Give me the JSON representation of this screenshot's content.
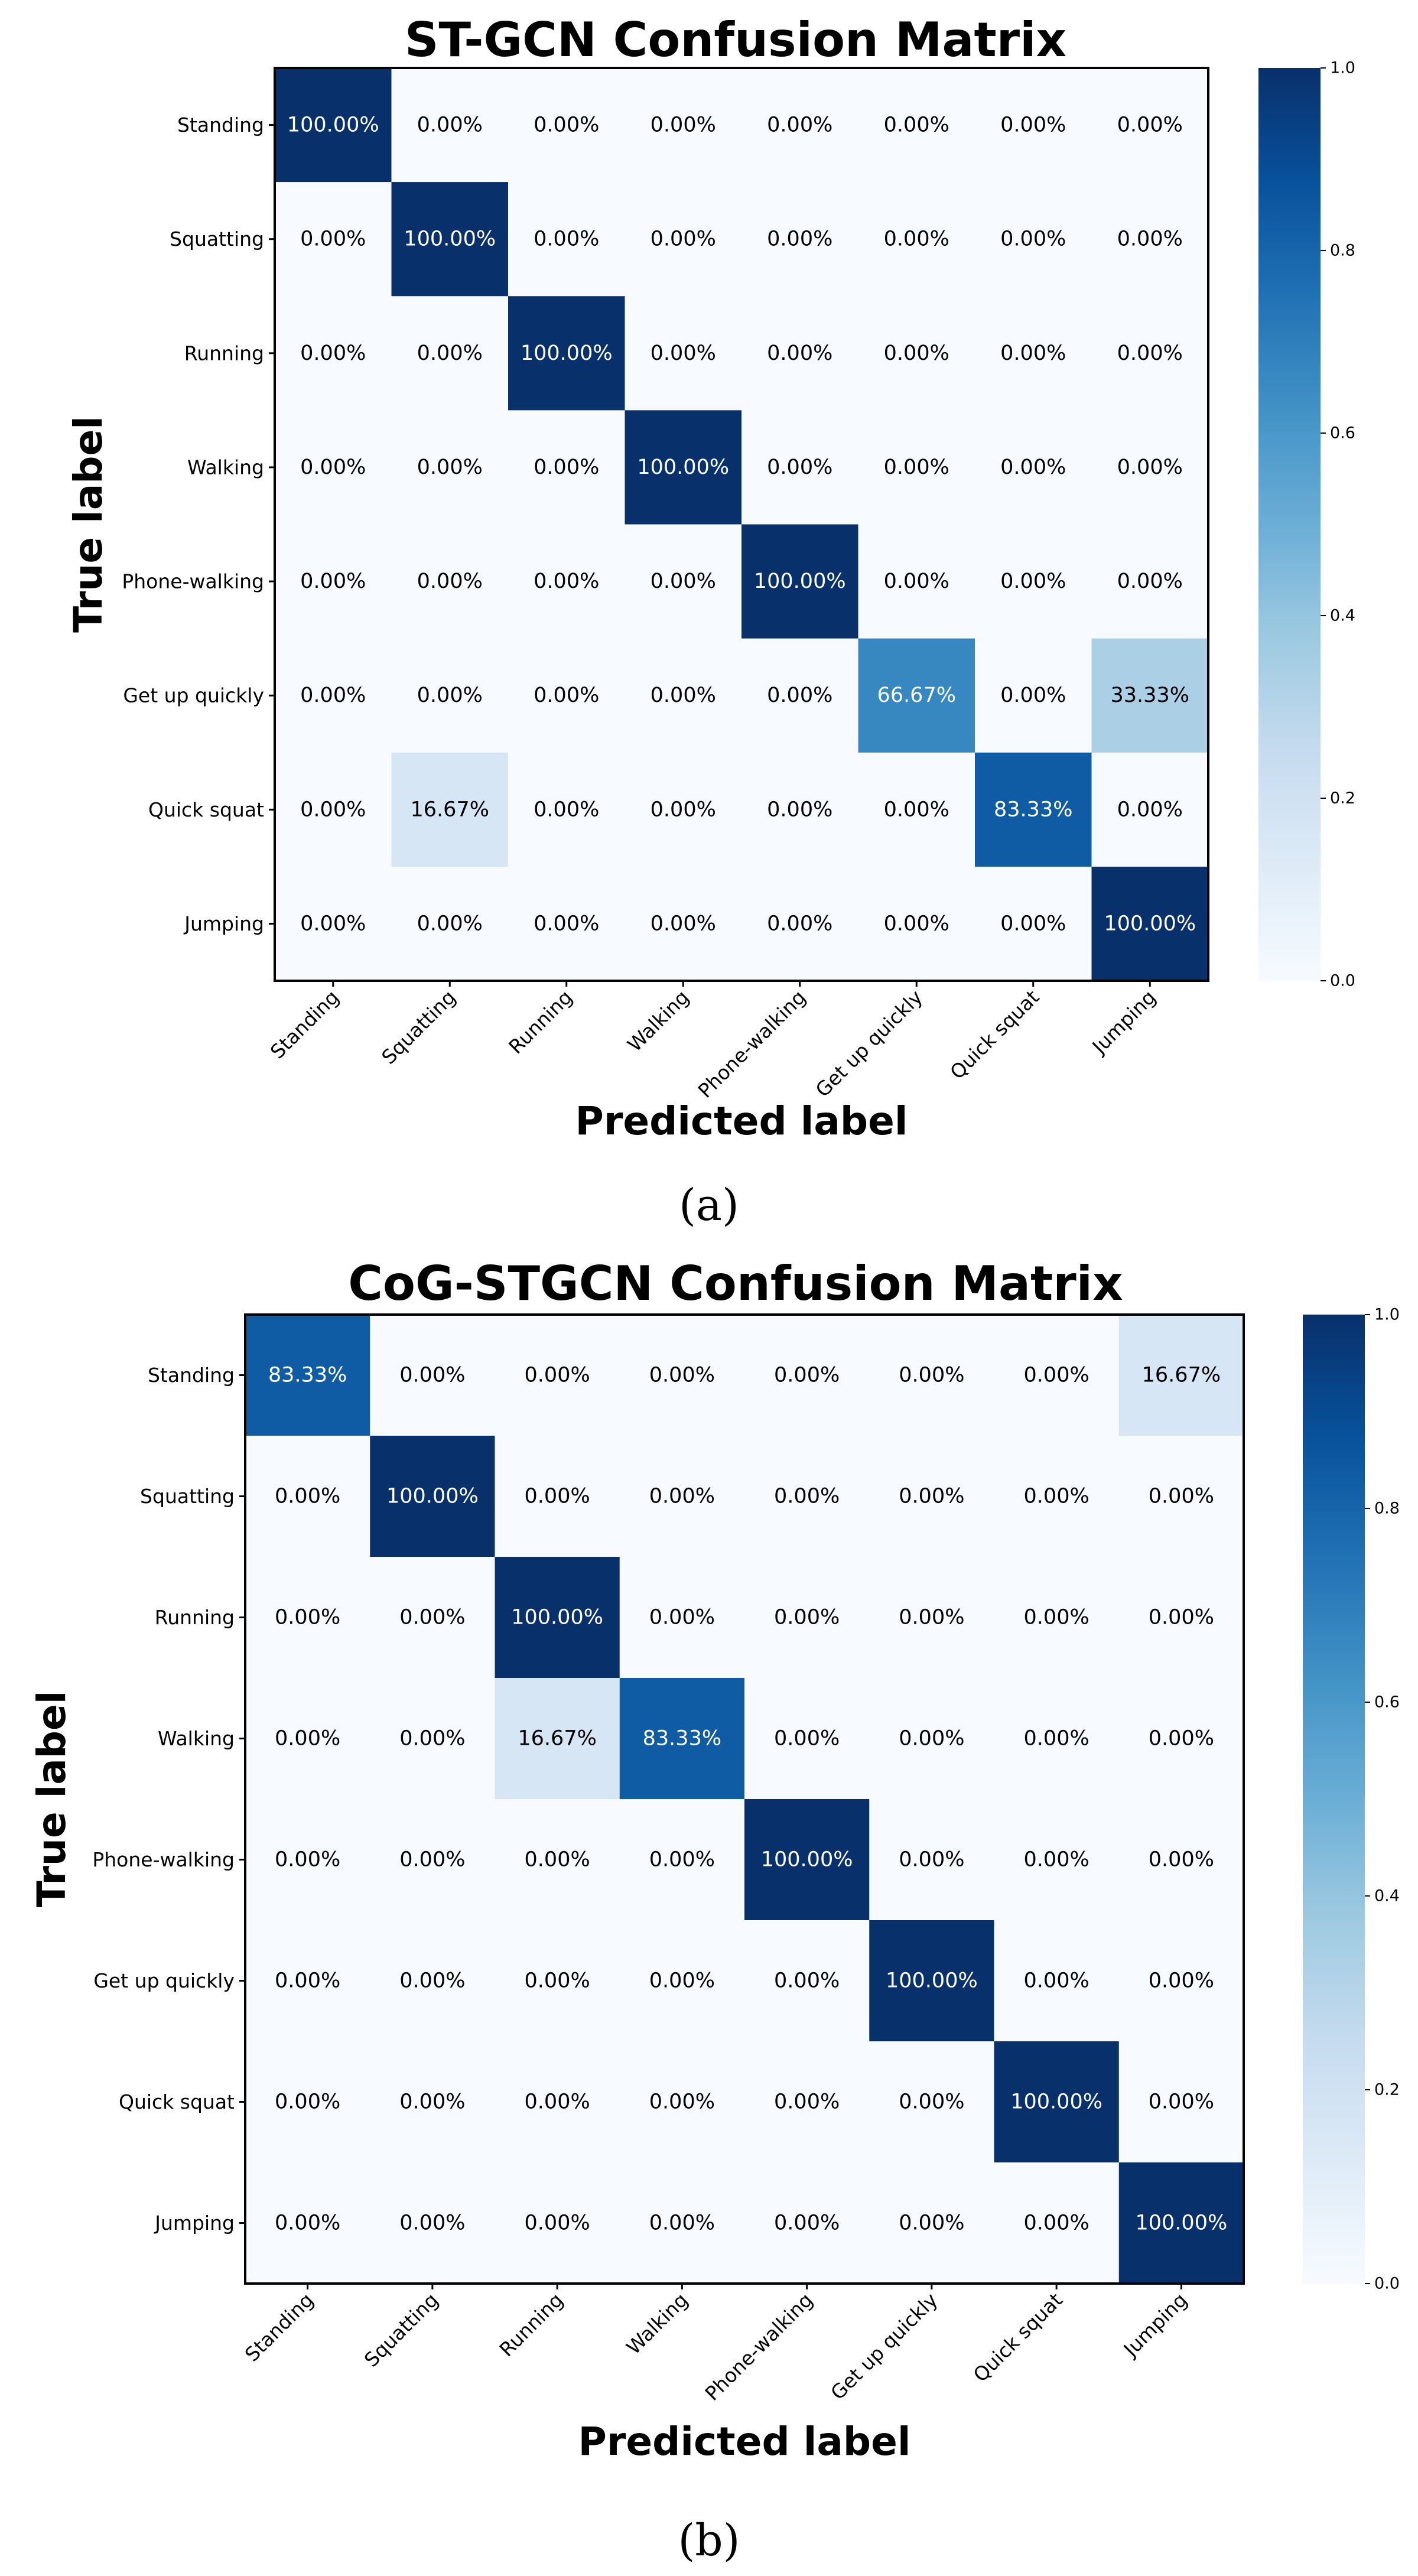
{
  "chart_data": [
    {
      "type": "heatmap",
      "title": "ST-GCN Confusion Matrix",
      "xlabel": "Predicted label",
      "ylabel": "True label",
      "caption": "(a)",
      "row_labels": [
        "Standing",
        "Squatting",
        "Running",
        "Walking",
        "Phone-walking",
        "Get up quickly",
        "Quick squat",
        "Jumping"
      ],
      "col_labels": [
        "Standing",
        "Squatting",
        "Running",
        "Walking",
        "Phone-walking",
        "Get up quickly",
        "Quick squat",
        "Jumping"
      ],
      "values": [
        [
          1.0,
          0,
          0,
          0,
          0,
          0,
          0,
          0
        ],
        [
          0,
          1.0,
          0,
          0,
          0,
          0,
          0,
          0
        ],
        [
          0,
          0,
          1.0,
          0,
          0,
          0,
          0,
          0
        ],
        [
          0,
          0,
          0,
          1.0,
          0,
          0,
          0,
          0
        ],
        [
          0,
          0,
          0,
          0,
          1.0,
          0,
          0,
          0
        ],
        [
          0,
          0,
          0,
          0,
          0,
          0.6667,
          0,
          0.3333
        ],
        [
          0,
          0.1667,
          0,
          0,
          0,
          0,
          0.8333,
          0
        ],
        [
          0,
          0,
          0,
          0,
          0,
          0,
          0,
          1.0
        ]
      ],
      "cell_labels": [
        [
          "100.00%",
          "0.00%",
          "0.00%",
          "0.00%",
          "0.00%",
          "0.00%",
          "0.00%",
          "0.00%"
        ],
        [
          "0.00%",
          "100.00%",
          "0.00%",
          "0.00%",
          "0.00%",
          "0.00%",
          "0.00%",
          "0.00%"
        ],
        [
          "0.00%",
          "0.00%",
          "100.00%",
          "0.00%",
          "0.00%",
          "0.00%",
          "0.00%",
          "0.00%"
        ],
        [
          "0.00%",
          "0.00%",
          "0.00%",
          "100.00%",
          "0.00%",
          "0.00%",
          "0.00%",
          "0.00%"
        ],
        [
          "0.00%",
          "0.00%",
          "0.00%",
          "0.00%",
          "100.00%",
          "0.00%",
          "0.00%",
          "0.00%"
        ],
        [
          "0.00%",
          "0.00%",
          "0.00%",
          "0.00%",
          "0.00%",
          "66.67%",
          "0.00%",
          "33.33%"
        ],
        [
          "0.00%",
          "16.67%",
          "0.00%",
          "0.00%",
          "0.00%",
          "0.00%",
          "83.33%",
          "0.00%"
        ],
        [
          "0.00%",
          "0.00%",
          "0.00%",
          "0.00%",
          "0.00%",
          "0.00%",
          "0.00%",
          "100.00%"
        ]
      ],
      "colorbar_range": [
        0,
        1
      ],
      "colorbar_ticks": [
        "0.0",
        "0.2",
        "0.4",
        "0.6",
        "0.8",
        "1.0"
      ],
      "colormap": "Blues"
    },
    {
      "type": "heatmap",
      "title": "CoG-STGCN Confusion Matrix",
      "xlabel": "Predicted label",
      "ylabel": "True label",
      "caption": "(b)",
      "row_labels": [
        "Standing",
        "Squatting",
        "Running",
        "Walking",
        "Phone-walking",
        "Get up quickly",
        "Quick squat",
        "Jumping"
      ],
      "col_labels": [
        "Standing",
        "Squatting",
        "Running",
        "Walking",
        "Phone-walking",
        "Get up quickly",
        "Quick squat",
        "Jumping"
      ],
      "values": [
        [
          0.8333,
          0,
          0,
          0,
          0,
          0,
          0,
          0.1667
        ],
        [
          0,
          1.0,
          0,
          0,
          0,
          0,
          0,
          0
        ],
        [
          0,
          0,
          1.0,
          0,
          0,
          0,
          0,
          0
        ],
        [
          0,
          0,
          0.1667,
          0.8333,
          0,
          0,
          0,
          0
        ],
        [
          0,
          0,
          0,
          0,
          1.0,
          0,
          0,
          0
        ],
        [
          0,
          0,
          0,
          0,
          0,
          1.0,
          0,
          0
        ],
        [
          0,
          0,
          0,
          0,
          0,
          0,
          1.0,
          0
        ],
        [
          0,
          0,
          0,
          0,
          0,
          0,
          0,
          1.0
        ]
      ],
      "cell_labels": [
        [
          "83.33%",
          "0.00%",
          "0.00%",
          "0.00%",
          "0.00%",
          "0.00%",
          "0.00%",
          "16.67%"
        ],
        [
          "0.00%",
          "100.00%",
          "0.00%",
          "0.00%",
          "0.00%",
          "0.00%",
          "0.00%",
          "0.00%"
        ],
        [
          "0.00%",
          "0.00%",
          "100.00%",
          "0.00%",
          "0.00%",
          "0.00%",
          "0.00%",
          "0.00%"
        ],
        [
          "0.00%",
          "0.00%",
          "16.67%",
          "83.33%",
          "0.00%",
          "0.00%",
          "0.00%",
          "0.00%"
        ],
        [
          "0.00%",
          "0.00%",
          "0.00%",
          "0.00%",
          "100.00%",
          "0.00%",
          "0.00%",
          "0.00%"
        ],
        [
          "0.00%",
          "0.00%",
          "0.00%",
          "0.00%",
          "0.00%",
          "100.00%",
          "0.00%",
          "0.00%"
        ],
        [
          "0.00%",
          "0.00%",
          "0.00%",
          "0.00%",
          "0.00%",
          "0.00%",
          "100.00%",
          "0.00%"
        ],
        [
          "0.00%",
          "0.00%",
          "0.00%",
          "0.00%",
          "0.00%",
          "0.00%",
          "0.00%",
          "100.00%"
        ]
      ],
      "colorbar_range": [
        0,
        1
      ],
      "colorbar_ticks": [
        "0.0",
        "0.2",
        "0.4",
        "0.6",
        "0.8",
        "1.0"
      ],
      "colormap": "Blues"
    }
  ]
}
